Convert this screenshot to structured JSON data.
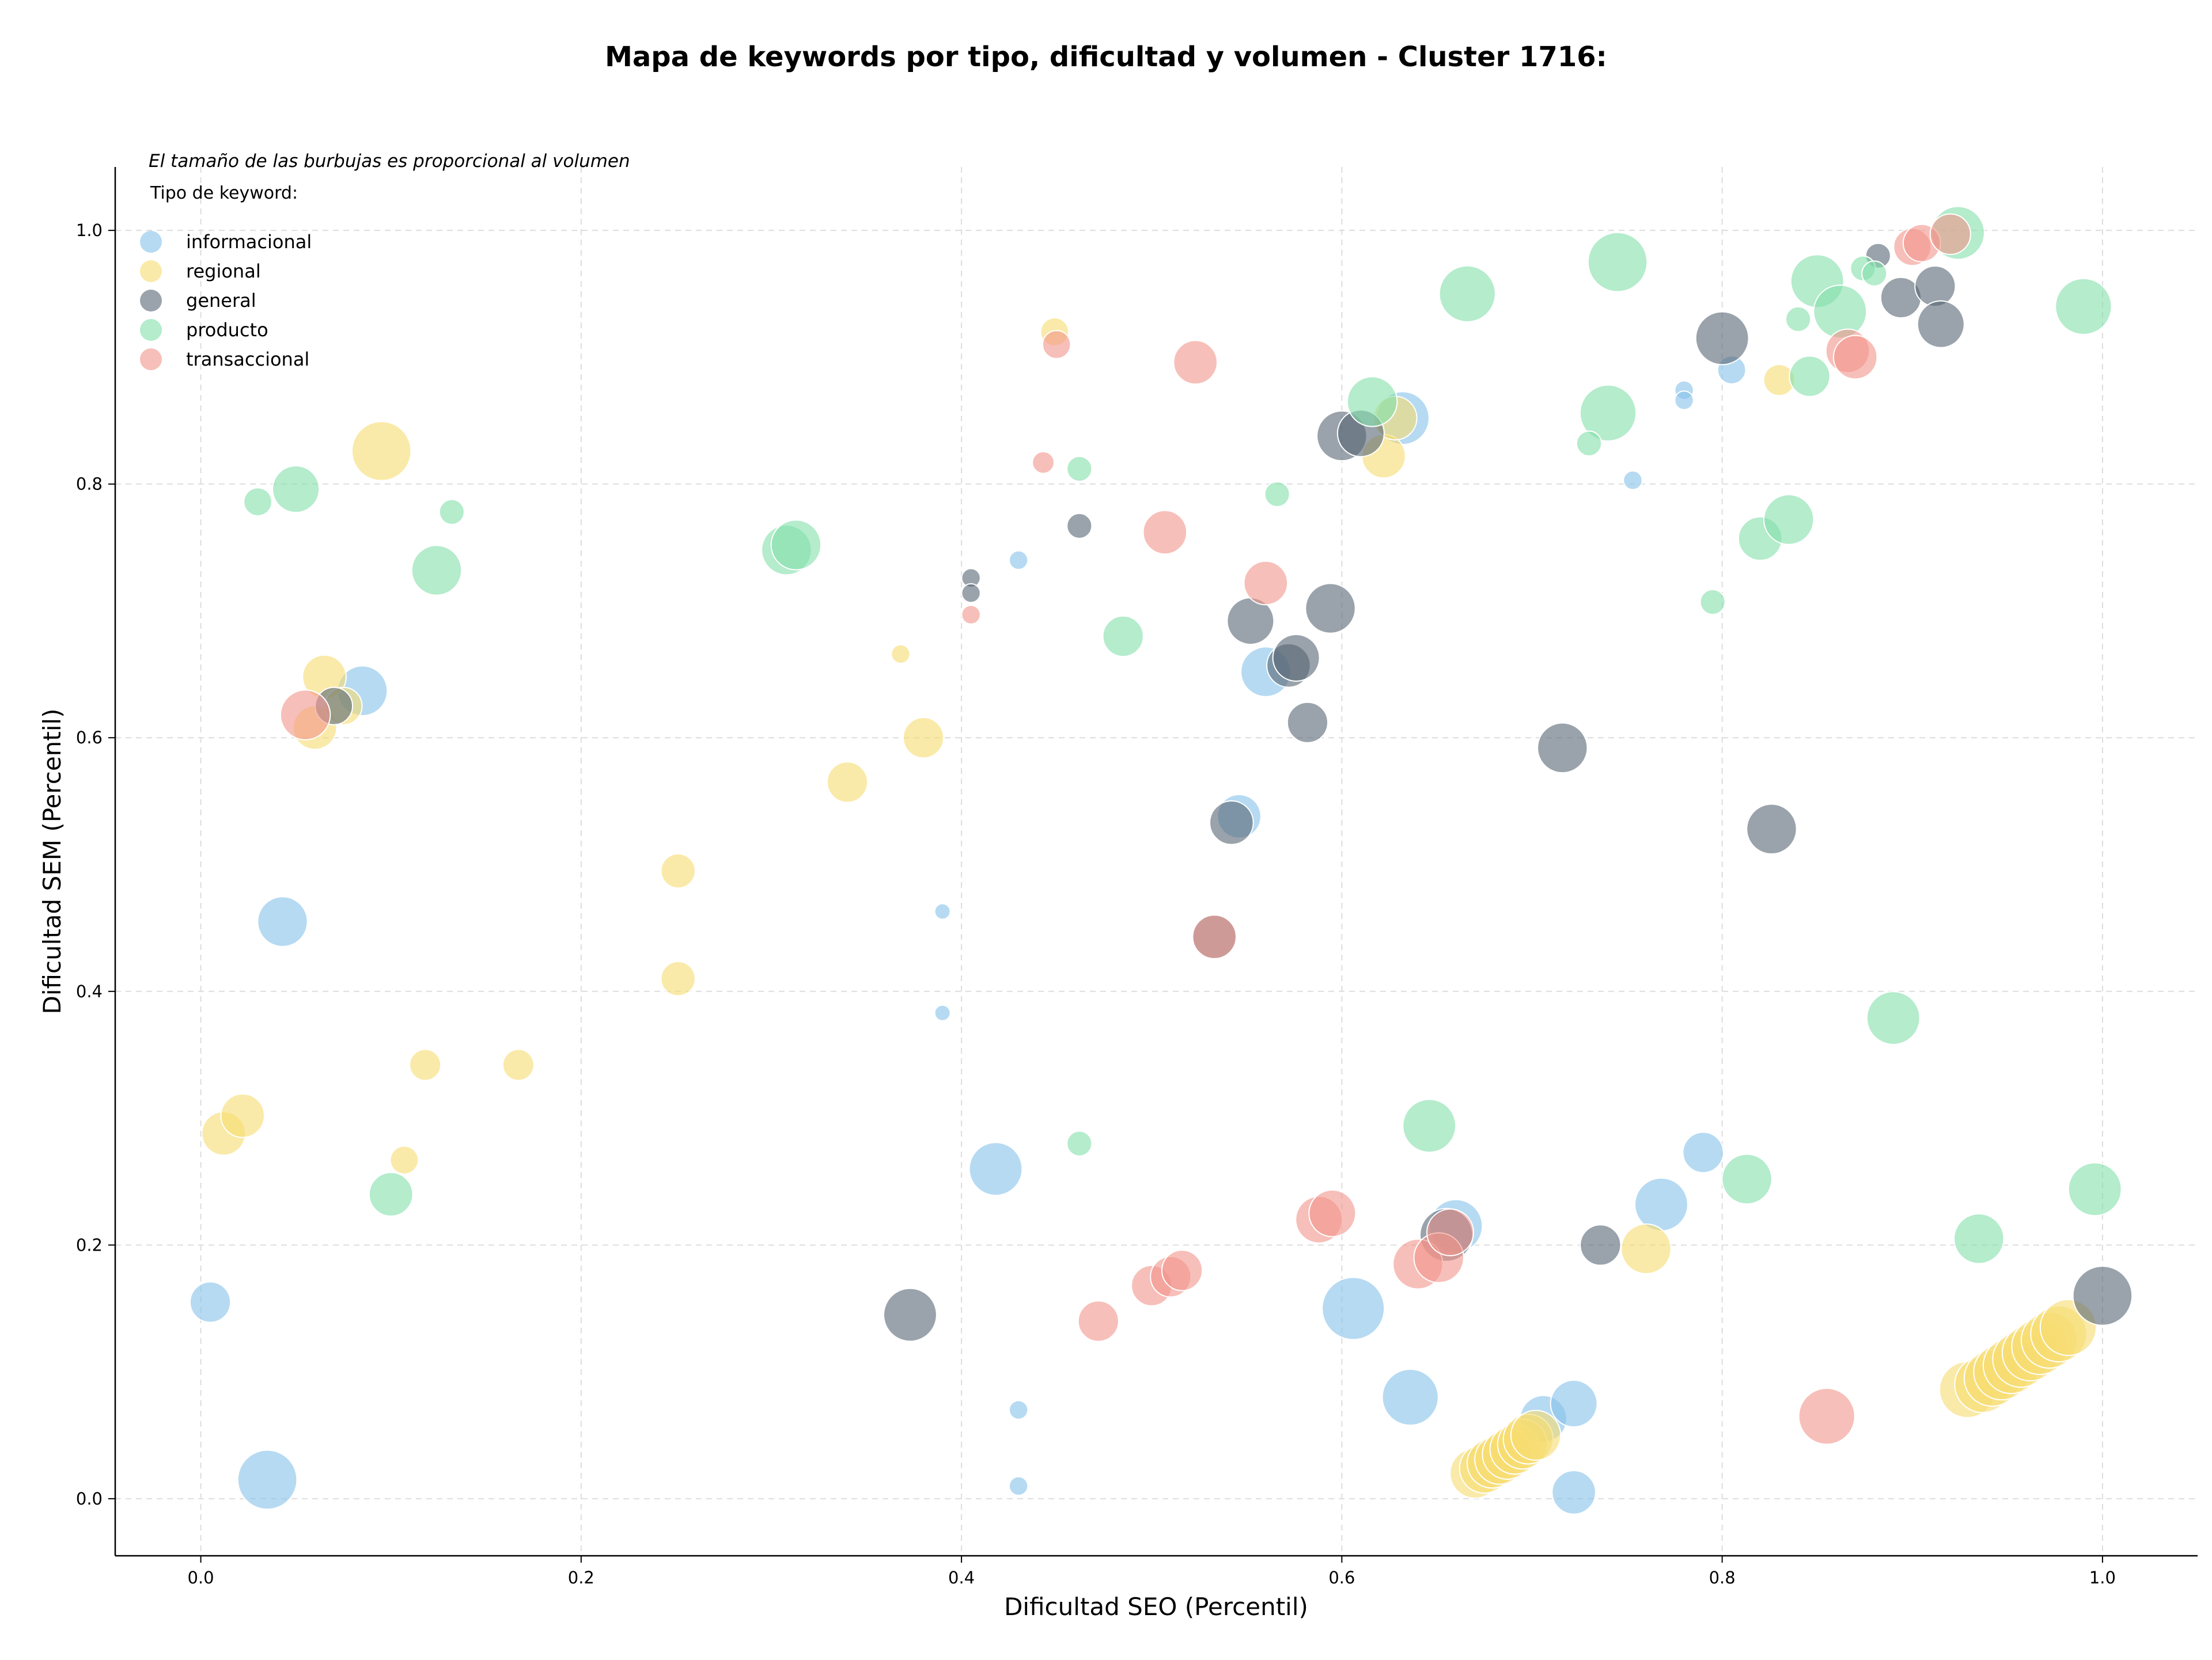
{
  "chart_data": {
    "type": "scatter",
    "title": "Mapa de keywords por tipo, dificultad y volumen - Cluster 1716:",
    "xlabel": "Dificultad SEO (Percentil)",
    "ylabel": "Dificultad SEM (Percentil)",
    "xlim": [
      -0.045,
      1.05
    ],
    "ylim": [
      -0.045,
      1.05
    ],
    "x_ticks": [
      "0.0",
      "0.2",
      "0.4",
      "0.6",
      "0.8",
      "1.0"
    ],
    "y_ticks": [
      "0.0",
      "0.2",
      "0.4",
      "0.6",
      "0.8",
      "1.0"
    ],
    "grid": true,
    "note": "El tamaño de las burbujas es proporcional al volumen",
    "legend_title": "Tipo de keyword:",
    "legend_position": "top-left",
    "series": [
      {
        "name": "informacional",
        "color": "#85c1e9",
        "points": [
          {
            "x": 0.005,
            "y": 0.155,
            "s": 1.3
          },
          {
            "x": 0.035,
            "y": 0.015,
            "s": 1.9
          },
          {
            "x": 0.043,
            "y": 0.455,
            "s": 1.6
          },
          {
            "x": 0.085,
            "y": 0.637,
            "s": 1.6
          },
          {
            "x": 0.39,
            "y": 0.463,
            "s": 0.5
          },
          {
            "x": 0.39,
            "y": 0.383,
            "s": 0.5
          },
          {
            "x": 0.418,
            "y": 0.26,
            "s": 1.7
          },
          {
            "x": 0.43,
            "y": 0.07,
            "s": 0.6
          },
          {
            "x": 0.43,
            "y": 0.01,
            "s": 0.6
          },
          {
            "x": 0.43,
            "y": 0.74,
            "s": 0.6
          },
          {
            "x": 0.546,
            "y": 0.538,
            "s": 1.4
          },
          {
            "x": 0.56,
            "y": 0.652,
            "s": 1.6
          },
          {
            "x": 0.606,
            "y": 0.15,
            "s": 2.0
          },
          {
            "x": 0.632,
            "y": 0.852,
            "s": 1.7
          },
          {
            "x": 0.636,
            "y": 0.08,
            "s": 1.8
          },
          {
            "x": 0.66,
            "y": 0.215,
            "s": 1.7
          },
          {
            "x": 0.706,
            "y": 0.063,
            "s": 1.5
          },
          {
            "x": 0.722,
            "y": 0.075,
            "s": 1.5
          },
          {
            "x": 0.722,
            "y": 0.005,
            "s": 1.4
          },
          {
            "x": 0.753,
            "y": 0.803,
            "s": 0.6
          },
          {
            "x": 0.768,
            "y": 0.232,
            "s": 1.7
          },
          {
            "x": 0.78,
            "y": 0.874,
            "s": 0.6
          },
          {
            "x": 0.78,
            "y": 0.866,
            "s": 0.6
          },
          {
            "x": 0.79,
            "y": 0.273,
            "s": 1.3
          },
          {
            "x": 0.805,
            "y": 0.89,
            "s": 0.9
          }
        ]
      },
      {
        "name": "regional",
        "color": "#f7dc6f",
        "points": [
          {
            "x": 0.012,
            "y": 0.288,
            "s": 1.4
          },
          {
            "x": 0.022,
            "y": 0.302,
            "s": 1.4
          },
          {
            "x": 0.06,
            "y": 0.608,
            "s": 1.4
          },
          {
            "x": 0.065,
            "y": 0.648,
            "s": 1.4
          },
          {
            "x": 0.075,
            "y": 0.625,
            "s": 1.2
          },
          {
            "x": 0.095,
            "y": 0.826,
            "s": 1.9
          },
          {
            "x": 0.107,
            "y": 0.267,
            "s": 0.9
          },
          {
            "x": 0.118,
            "y": 0.342,
            "s": 1.0
          },
          {
            "x": 0.167,
            "y": 0.342,
            "s": 1.0
          },
          {
            "x": 0.251,
            "y": 0.495,
            "s": 1.1
          },
          {
            "x": 0.251,
            "y": 0.41,
            "s": 1.1
          },
          {
            "x": 0.34,
            "y": 0.565,
            "s": 1.3
          },
          {
            "x": 0.368,
            "y": 0.666,
            "s": 0.6
          },
          {
            "x": 0.38,
            "y": 0.6,
            "s": 1.3
          },
          {
            "x": 0.449,
            "y": 0.92,
            "s": 0.9
          },
          {
            "x": 0.622,
            "y": 0.822,
            "s": 1.4
          },
          {
            "x": 0.628,
            "y": 0.852,
            "s": 1.4
          },
          {
            "x": 0.67,
            "y": 0.02,
            "s": 1.6
          },
          {
            "x": 0.675,
            "y": 0.024,
            "s": 1.6
          },
          {
            "x": 0.679,
            "y": 0.028,
            "s": 1.6
          },
          {
            "x": 0.683,
            "y": 0.031,
            "s": 1.6
          },
          {
            "x": 0.687,
            "y": 0.035,
            "s": 1.6
          },
          {
            "x": 0.691,
            "y": 0.039,
            "s": 1.6
          },
          {
            "x": 0.695,
            "y": 0.043,
            "s": 1.6
          },
          {
            "x": 0.698,
            "y": 0.047,
            "s": 1.6
          },
          {
            "x": 0.702,
            "y": 0.05,
            "s": 1.6
          },
          {
            "x": 0.76,
            "y": 0.197,
            "s": 1.6
          },
          {
            "x": 0.83,
            "y": 0.882,
            "s": 1.0
          },
          {
            "x": 0.929,
            "y": 0.086,
            "s": 1.8
          },
          {
            "x": 0.937,
            "y": 0.09,
            "s": 1.8
          },
          {
            "x": 0.942,
            "y": 0.095,
            "s": 1.8
          },
          {
            "x": 0.947,
            "y": 0.1,
            "s": 1.8
          },
          {
            "x": 0.952,
            "y": 0.105,
            "s": 1.8
          },
          {
            "x": 0.957,
            "y": 0.11,
            "s": 1.8
          },
          {
            "x": 0.962,
            "y": 0.115,
            "s": 1.8
          },
          {
            "x": 0.967,
            "y": 0.12,
            "s": 1.8
          },
          {
            "x": 0.972,
            "y": 0.125,
            "s": 1.8
          },
          {
            "x": 0.977,
            "y": 0.13,
            "s": 1.8
          },
          {
            "x": 0.982,
            "y": 0.135,
            "s": 1.8
          }
        ]
      },
      {
        "name": "general",
        "color": "#566573",
        "points": [
          {
            "x": 0.07,
            "y": 0.625,
            "s": 1.2
          },
          {
            "x": 0.373,
            "y": 0.145,
            "s": 1.7
          },
          {
            "x": 0.405,
            "y": 0.726,
            "s": 0.6
          },
          {
            "x": 0.405,
            "y": 0.714,
            "s": 0.6
          },
          {
            "x": 0.462,
            "y": 0.767,
            "s": 0.8
          },
          {
            "x": 0.533,
            "y": 0.443,
            "s": 1.4
          },
          {
            "x": 0.542,
            "y": 0.533,
            "s": 1.4
          },
          {
            "x": 0.552,
            "y": 0.692,
            "s": 1.5
          },
          {
            "x": 0.572,
            "y": 0.657,
            "s": 1.4
          },
          {
            "x": 0.576,
            "y": 0.663,
            "s": 1.5
          },
          {
            "x": 0.582,
            "y": 0.612,
            "s": 1.3
          },
          {
            "x": 0.594,
            "y": 0.702,
            "s": 1.6
          },
          {
            "x": 0.6,
            "y": 0.838,
            "s": 1.6
          },
          {
            "x": 0.61,
            "y": 0.84,
            "s": 1.5
          },
          {
            "x": 0.655,
            "y": 0.208,
            "s": 1.7
          },
          {
            "x": 0.716,
            "y": 0.592,
            "s": 1.6
          },
          {
            "x": 0.736,
            "y": 0.2,
            "s": 1.3
          },
          {
            "x": 0.8,
            "y": 0.915,
            "s": 1.7
          },
          {
            "x": 0.826,
            "y": 0.528,
            "s": 1.6
          },
          {
            "x": 0.882,
            "y": 0.98,
            "s": 0.8
          },
          {
            "x": 0.894,
            "y": 0.947,
            "s": 1.3
          },
          {
            "x": 0.912,
            "y": 0.956,
            "s": 1.3
          },
          {
            "x": 0.915,
            "y": 0.926,
            "s": 1.5
          },
          {
            "x": 1.0,
            "y": 0.16,
            "s": 1.9
          }
        ]
      },
      {
        "name": "producto",
        "color": "#82e0aa",
        "points": [
          {
            "x": 0.03,
            "y": 0.786,
            "s": 0.9
          },
          {
            "x": 0.05,
            "y": 0.796,
            "s": 1.5
          },
          {
            "x": 0.1,
            "y": 0.24,
            "s": 1.4
          },
          {
            "x": 0.124,
            "y": 0.732,
            "s": 1.6
          },
          {
            "x": 0.132,
            "y": 0.778,
            "s": 0.8
          },
          {
            "x": 0.308,
            "y": 0.748,
            "s": 1.6
          },
          {
            "x": 0.313,
            "y": 0.752,
            "s": 1.6
          },
          {
            "x": 0.462,
            "y": 0.812,
            "s": 0.8
          },
          {
            "x": 0.462,
            "y": 0.28,
            "s": 0.8
          },
          {
            "x": 0.485,
            "y": 0.68,
            "s": 1.3
          },
          {
            "x": 0.566,
            "y": 0.792,
            "s": 0.8
          },
          {
            "x": 0.616,
            "y": 0.865,
            "s": 1.6
          },
          {
            "x": 0.646,
            "y": 0.294,
            "s": 1.7
          },
          {
            "x": 0.666,
            "y": 0.95,
            "s": 1.8
          },
          {
            "x": 0.74,
            "y": 0.856,
            "s": 1.8
          },
          {
            "x": 0.745,
            "y": 0.975,
            "s": 1.9
          },
          {
            "x": 0.73,
            "y": 0.832,
            "s": 0.8
          },
          {
            "x": 0.795,
            "y": 0.707,
            "s": 0.8
          },
          {
            "x": 0.813,
            "y": 0.252,
            "s": 1.6
          },
          {
            "x": 0.82,
            "y": 0.757,
            "s": 1.4
          },
          {
            "x": 0.835,
            "y": 0.772,
            "s": 1.6
          },
          {
            "x": 0.84,
            "y": 0.93,
            "s": 0.8
          },
          {
            "x": 0.846,
            "y": 0.885,
            "s": 1.3
          },
          {
            "x": 0.85,
            "y": 0.96,
            "s": 1.7
          },
          {
            "x": 0.862,
            "y": 0.936,
            "s": 1.7
          },
          {
            "x": 0.874,
            "y": 0.97,
            "s": 0.8
          },
          {
            "x": 0.88,
            "y": 0.966,
            "s": 0.8
          },
          {
            "x": 0.89,
            "y": 0.379,
            "s": 1.7
          },
          {
            "x": 0.924,
            "y": 0.998,
            "s": 1.7
          },
          {
            "x": 0.935,
            "y": 0.205,
            "s": 1.6
          },
          {
            "x": 0.99,
            "y": 0.94,
            "s": 1.8
          },
          {
            "x": 0.996,
            "y": 0.244,
            "s": 1.7
          }
        ]
      },
      {
        "name": "transaccional",
        "color": "#f1948a",
        "points": [
          {
            "x": 0.055,
            "y": 0.618,
            "s": 1.6
          },
          {
            "x": 0.405,
            "y": 0.697,
            "s": 0.6
          },
          {
            "x": 0.443,
            "y": 0.817,
            "s": 0.7
          },
          {
            "x": 0.45,
            "y": 0.91,
            "s": 0.9
          },
          {
            "x": 0.472,
            "y": 0.14,
            "s": 1.3
          },
          {
            "x": 0.5,
            "y": 0.168,
            "s": 1.3
          },
          {
            "x": 0.51,
            "y": 0.175,
            "s": 1.3
          },
          {
            "x": 0.516,
            "y": 0.18,
            "s": 1.3
          },
          {
            "x": 0.507,
            "y": 0.762,
            "s": 1.4
          },
          {
            "x": 0.523,
            "y": 0.896,
            "s": 1.4
          },
          {
            "x": 0.533,
            "y": 0.443,
            "s": 1.4
          },
          {
            "x": 0.56,
            "y": 0.722,
            "s": 1.4
          },
          {
            "x": 0.588,
            "y": 0.22,
            "s": 1.5
          },
          {
            "x": 0.595,
            "y": 0.225,
            "s": 1.5
          },
          {
            "x": 0.64,
            "y": 0.185,
            "s": 1.6
          },
          {
            "x": 0.651,
            "y": 0.19,
            "s": 1.6
          },
          {
            "x": 0.657,
            "y": 0.21,
            "s": 1.5
          },
          {
            "x": 0.855,
            "y": 0.065,
            "s": 1.8
          },
          {
            "x": 0.866,
            "y": 0.905,
            "s": 1.4
          },
          {
            "x": 0.87,
            "y": 0.9,
            "s": 1.4
          },
          {
            "x": 0.9,
            "y": 0.987,
            "s": 1.2
          },
          {
            "x": 0.905,
            "y": 0.99,
            "s": 1.2
          },
          {
            "x": 0.92,
            "y": 0.997,
            "s": 1.3
          }
        ]
      }
    ]
  }
}
